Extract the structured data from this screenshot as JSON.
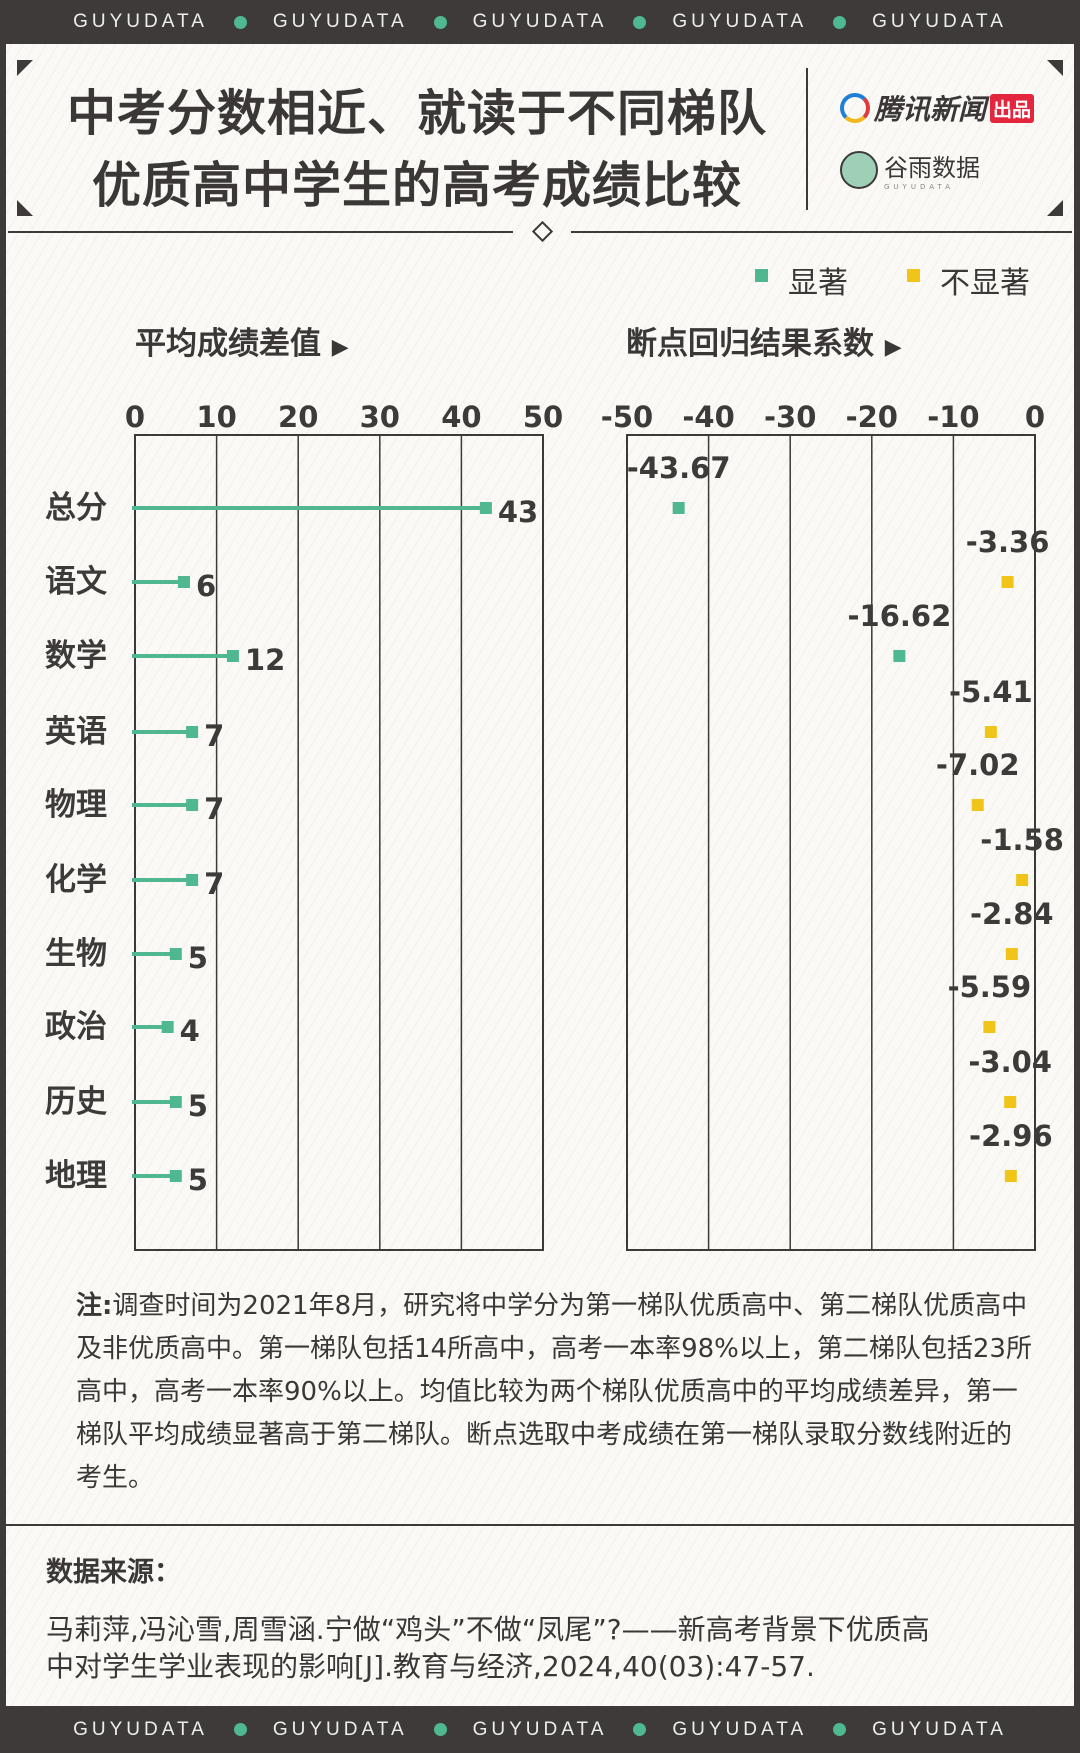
{
  "banner": {
    "brand": "GUYUDATA"
  },
  "title": {
    "line1": "中考分数相近、就读于不同梯队",
    "line2": "优质高中学生的高考成绩比较"
  },
  "logos": {
    "tencent": "腾讯新闻",
    "tencent_badge": "出品",
    "guyu": "谷雨数据",
    "guyu_sub": "GUYUDATA"
  },
  "legend": {
    "significant": "显著",
    "not_significant": "不显著"
  },
  "colors": {
    "significant": "#4fb890",
    "not_significant": "#f0c419",
    "dark": "#3d3a39"
  },
  "chart_data": [
    {
      "type": "bar",
      "title": "平均成绩差值",
      "orientation": "horizontal",
      "xlim": [
        0,
        50
      ],
      "xticks": [
        0,
        10,
        20,
        30,
        40,
        50
      ],
      "categories": [
        "总分",
        "语文",
        "数学",
        "英语",
        "物理",
        "化学",
        "生物",
        "政治",
        "历史",
        "地理"
      ],
      "values": [
        43,
        6,
        12,
        7,
        7,
        7,
        5,
        4,
        5,
        5
      ],
      "grid": true
    },
    {
      "type": "scatter",
      "title": "断点回归结果系数",
      "xlim": [
        -50,
        0
      ],
      "xticks": [
        -50,
        -40,
        -30,
        -20,
        -10,
        0
      ],
      "categories": [
        "总分",
        "语文",
        "数学",
        "英语",
        "物理",
        "化学",
        "生物",
        "政治",
        "历史",
        "地理"
      ],
      "values": [
        -43.67,
        -3.36,
        -16.62,
        -5.41,
        -7.02,
        -1.58,
        -2.84,
        -5.59,
        -3.04,
        -2.96
      ],
      "labels": [
        "-43.67",
        "-3.36",
        "-16.62",
        "-5.41",
        "-7.02",
        "-1.58",
        "-2.84",
        "-5.59",
        "-3.04",
        "-2.96"
      ],
      "significant": [
        true,
        false,
        true,
        false,
        false,
        false,
        false,
        false,
        false,
        false
      ],
      "grid": true
    }
  ],
  "note": {
    "label": "注:",
    "text": "调查时间为2021年8月，研究将中学分为第一梯队优质高中、第二梯队优质高中及非优质高中。第一梯队包括14所高中，高考一本率98%以上，第二梯队包括23所高中，高考一本率90%以上。均值比较为两个梯队优质高中的平均成绩差异，第一梯队平均成绩显著高于第二梯队。断点选取中考成绩在第一梯队录取分数线附近的考生。"
  },
  "source": {
    "label": "数据来源：",
    "line1": "马莉萍,冯沁雪,周雪涵.宁做“鸡头”不做“凤尾”?——新高考背景下优质高",
    "line2": "中对学生学业表现的影响[J].教育与经济,2024,40(03):47-57."
  }
}
